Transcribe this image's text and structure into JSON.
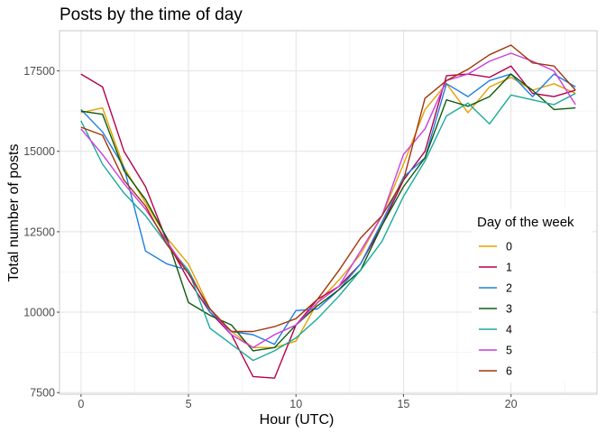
{
  "chart_data": {
    "type": "line",
    "title": "Posts by the time of day",
    "xlabel": "Hour (UTC)",
    "ylabel": "Total number of posts",
    "xlim": [
      -1,
      24
    ],
    "ylim": [
      7450,
      18750
    ],
    "x_ticks": [
      0,
      5,
      10,
      15,
      20
    ],
    "y_ticks": [
      7500,
      10000,
      12500,
      15000,
      17500
    ],
    "grid": true,
    "legend_title": "Day of the week",
    "legend_position": "right",
    "x": [
      0,
      1,
      2,
      3,
      4,
      5,
      6,
      7,
      8,
      9,
      10,
      11,
      12,
      13,
      14,
      15,
      16,
      17,
      18,
      19,
      20,
      21,
      22,
      23
    ],
    "series": [
      {
        "name": "0",
        "color": "#E69F00",
        "values": [
          16200,
          16350,
          14500,
          13400,
          12300,
          11500,
          10100,
          9400,
          8900,
          8900,
          9100,
          10300,
          11000,
          11800,
          13000,
          14600,
          16300,
          17100,
          16200,
          17000,
          17300,
          16900,
          17100,
          16800
        ]
      },
      {
        "name": "1",
        "color": "#B5004D",
        "values": [
          17400,
          17000,
          15000,
          13900,
          12200,
          11000,
          10000,
          9300,
          8000,
          7950,
          9600,
          10400,
          10800,
          11500,
          12700,
          14100,
          15000,
          17350,
          17400,
          17300,
          17650,
          16800,
          16700,
          16900
        ]
      },
      {
        "name": "2",
        "color": "#1F7FE0",
        "values": [
          16300,
          15600,
          14500,
          11900,
          11500,
          11300,
          10000,
          9400,
          9300,
          9000,
          10050,
          10100,
          10700,
          11500,
          12800,
          14200,
          14800,
          17100,
          16700,
          17200,
          17400,
          16700,
          17400,
          17000
        ]
      },
      {
        "name": "3",
        "color": "#0E5C0E",
        "values": [
          16250,
          16150,
          14400,
          13500,
          12300,
          10300,
          9900,
          9600,
          8800,
          8900,
          9600,
          10200,
          10700,
          11300,
          12700,
          13900,
          14800,
          16600,
          16400,
          16700,
          17400,
          16900,
          16300,
          16350
        ]
      },
      {
        "name": "4",
        "color": "#1AAA9A",
        "values": [
          15950,
          14600,
          13700,
          13000,
          12100,
          11300,
          9500,
          9000,
          8500,
          8800,
          9200,
          9800,
          10500,
          11300,
          12200,
          13600,
          14700,
          16100,
          16500,
          15850,
          16750,
          16600,
          16450,
          16800
        ]
      },
      {
        "name": "5",
        "color": "#CC3CE0",
        "values": [
          15700,
          14900,
          14000,
          13200,
          12200,
          11200,
          10100,
          9300,
          8900,
          9300,
          9600,
          10300,
          10800,
          11900,
          13000,
          14900,
          15700,
          17200,
          17400,
          17800,
          18050,
          17800,
          17500,
          16450
        ]
      },
      {
        "name": "6",
        "color": "#A0350C",
        "values": [
          15750,
          15500,
          14100,
          13300,
          12100,
          11200,
          10100,
          9400,
          9400,
          9550,
          9800,
          10400,
          11300,
          12300,
          13000,
          14100,
          16650,
          17200,
          17550,
          18000,
          18300,
          17750,
          17650,
          16900
        ]
      }
    ]
  }
}
